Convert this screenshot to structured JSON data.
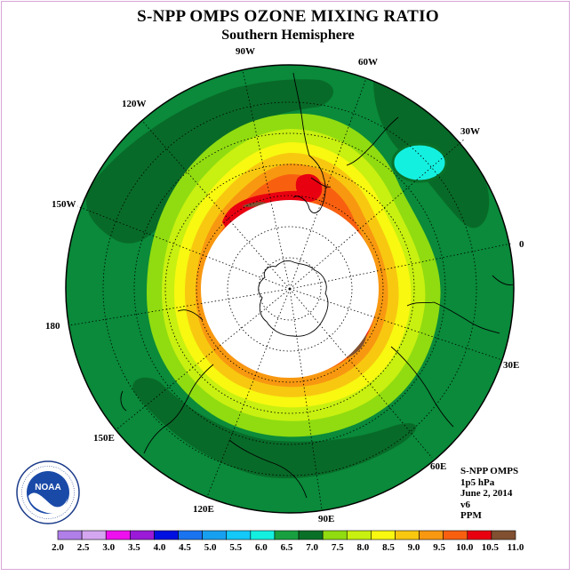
{
  "header": {
    "title": "S-NPP OMPS OZONE MIXING RATIO",
    "subtitle": "Southern Hemisphere"
  },
  "longitude_labels": [
    "90W",
    "60W",
    "30W",
    "0",
    "30E",
    "60E",
    "90E",
    "120E",
    "150E",
    "180",
    "150W",
    "120W"
  ],
  "info": {
    "instrument": "S-NPP OMPS",
    "level": "1p5 hPa",
    "date": "June 2, 2014",
    "version": "v6",
    "units": "PPM"
  },
  "logo": {
    "text": "NOAA"
  },
  "colorbar": {
    "ticks": [
      "2.0",
      "2.5",
      "3.0",
      "3.5",
      "4.0",
      "4.5",
      "5.0",
      "5.5",
      "6.0",
      "6.5",
      "7.0",
      "7.5",
      "8.0",
      "8.5",
      "9.0",
      "9.5",
      "10.0",
      "10.5",
      "11.0"
    ],
    "colors": [
      "#b07fe8",
      "#d4a6f0",
      "#ee10ee",
      "#9a1ad8",
      "#0010e0",
      "#1a74f0",
      "#18a0f0",
      "#14c8f8",
      "#14f0e0",
      "#18a040",
      "#0a7028",
      "#90dc10",
      "#c8f010",
      "#f8f810",
      "#f8c810",
      "#f89810",
      "#f86010",
      "#e80010",
      "#805030"
    ]
  },
  "colors": {
    "outer_green": "#0a8a3a",
    "dark_green": "#086a28",
    "no_data": "#ffffff"
  }
}
